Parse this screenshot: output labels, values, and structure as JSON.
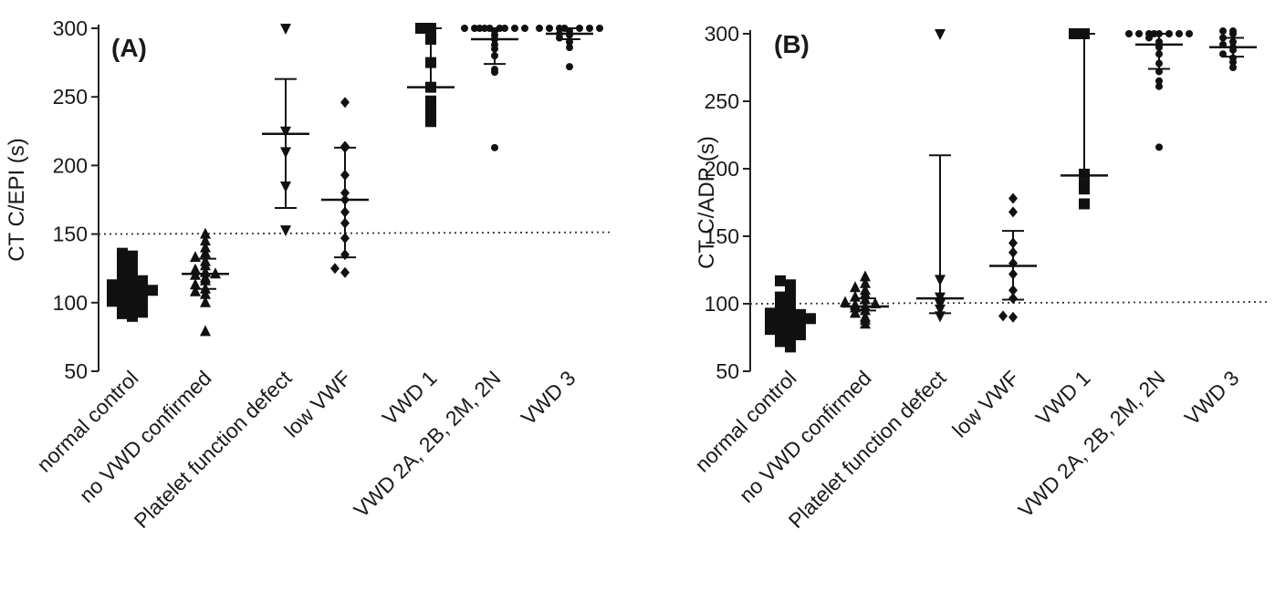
{
  "chart_data": [
    {
      "type": "scatter",
      "panel_label": "(A)",
      "ylabel": "CT C/EPI (s)",
      "ylim": [
        50,
        300
      ],
      "yticks": [
        "50",
        "100",
        "150",
        "200",
        "250",
        "300"
      ],
      "reference_line": 150,
      "categories": [
        "normal control",
        "no VWD confirmed",
        "Platelet function defect",
        "low VWF",
        "VWD 1",
        "VWD 2A, 2B, 2M, 2N",
        "VWD 3"
      ],
      "series": [
        {
          "category": "normal control",
          "marker": "square",
          "median": 108,
          "whisker_low": null,
          "whisker_high": null,
          "points": [
            90,
            92,
            93,
            95,
            96,
            98,
            99,
            100,
            101,
            102,
            103,
            104,
            105,
            106,
            107,
            108,
            108,
            109,
            110,
            111,
            112,
            113,
            114,
            115,
            116,
            118,
            120,
            122,
            124,
            126,
            128,
            130,
            132,
            134,
            136
          ]
        },
        {
          "category": "no VWD confirmed",
          "marker": "triangle",
          "median": 121,
          "whisker_low": 110,
          "whisker_high": 132,
          "points": [
            79,
            100,
            106,
            108,
            110,
            113,
            116,
            118,
            120,
            121,
            122,
            124,
            127,
            130,
            133,
            136,
            140,
            145,
            150
          ]
        },
        {
          "category": "Platelet function defect",
          "marker": "triangle-down",
          "median": 223,
          "whisker_low": 169,
          "whisker_high": 263,
          "points": [
            153,
            185,
            210,
            225,
            300
          ]
        },
        {
          "category": "low VWF",
          "marker": "diamond",
          "median": 175,
          "whisker_low": 133,
          "whisker_high": 213,
          "points": [
            122,
            125,
            135,
            147,
            158,
            166,
            175,
            180,
            193,
            213,
            214,
            246
          ]
        },
        {
          "category": "VWD 1",
          "marker": "square",
          "median": 257,
          "whisker_low": null,
          "whisker_high": 300,
          "points": [
            232,
            236,
            240,
            247,
            257,
            275,
            292,
            300,
            300
          ]
        },
        {
          "category": "VWD 2A, 2B, 2M, 2N",
          "marker": "circle",
          "median": 292,
          "whisker_low": 274,
          "whisker_high": 300,
          "points": [
            213,
            268,
            270,
            280,
            285,
            288,
            292,
            295,
            298,
            300,
            300,
            300,
            300,
            300,
            300,
            300,
            300,
            300
          ]
        },
        {
          "category": "VWD 3",
          "marker": "circle",
          "median": 296,
          "whisker_low": 292,
          "whisker_high": 300,
          "points": [
            272,
            286,
            290,
            293,
            295,
            296,
            298,
            300,
            300,
            300,
            300,
            300,
            300,
            300
          ]
        }
      ]
    },
    {
      "type": "scatter",
      "panel_label": "(B)",
      "ylabel": "CT C/ADP (s)",
      "ylim": [
        50,
        300
      ],
      "yticks": [
        "50",
        "100",
        "150",
        "200",
        "250",
        "300"
      ],
      "reference_line": 100,
      "categories": [
        "normal control",
        "no VWD confirmed",
        "Platelet function defect",
        "low VWF",
        "VWD 1",
        "VWD 2A, 2B, 2M, 2N",
        "VWD 3"
      ],
      "series": [
        {
          "category": "normal control",
          "marker": "square",
          "median": 86,
          "whisker_low": null,
          "whisker_high": null,
          "points": [
            68,
            70,
            72,
            74,
            75,
            77,
            78,
            79,
            80,
            81,
            82,
            83,
            84,
            85,
            86,
            86,
            87,
            88,
            89,
            90,
            91,
            92,
            93,
            95,
            96,
            98,
            100,
            102,
            105,
            108,
            111,
            114,
            117
          ]
        },
        {
          "category": "no VWD confirmed",
          "marker": "triangle",
          "median": 98,
          "whisker_low": 95,
          "whisker_high": 104,
          "points": [
            85,
            88,
            90,
            93,
            95,
            97,
            98,
            99,
            100,
            101,
            103,
            105,
            107,
            110,
            112,
            115,
            120
          ]
        },
        {
          "category": "Platelet function defect",
          "marker": "triangle-down",
          "median": 104,
          "whisker_low": 93,
          "whisker_high": 210,
          "points": [
            91,
            96,
            100,
            105,
            118,
            300
          ]
        },
        {
          "category": "low VWF",
          "marker": "diamond",
          "median": 128,
          "whisker_low": 103,
          "whisker_high": 154,
          "points": [
            90,
            91,
            104,
            110,
            122,
            130,
            138,
            145,
            168,
            178
          ]
        },
        {
          "category": "VWD 1",
          "marker": "square",
          "median": 195,
          "whisker_low": null,
          "whisker_high": 300,
          "points": [
            174,
            185,
            188,
            196,
            300,
            300
          ]
        },
        {
          "category": "VWD 2A, 2B, 2M, 2N",
          "marker": "circle",
          "median": 292,
          "whisker_low": 274,
          "whisker_high": 300,
          "points": [
            216,
            261,
            265,
            272,
            278,
            285,
            290,
            294,
            297,
            300,
            300,
            300,
            300,
            300,
            300,
            300,
            300
          ]
        },
        {
          "category": "VWD 3",
          "marker": "circle",
          "median": 290,
          "whisker_low": 283,
          "whisker_high": 297,
          "points": [
            275,
            279,
            282,
            285,
            288,
            290,
            292,
            294,
            297,
            300,
            302,
            302
          ]
        }
      ]
    }
  ]
}
